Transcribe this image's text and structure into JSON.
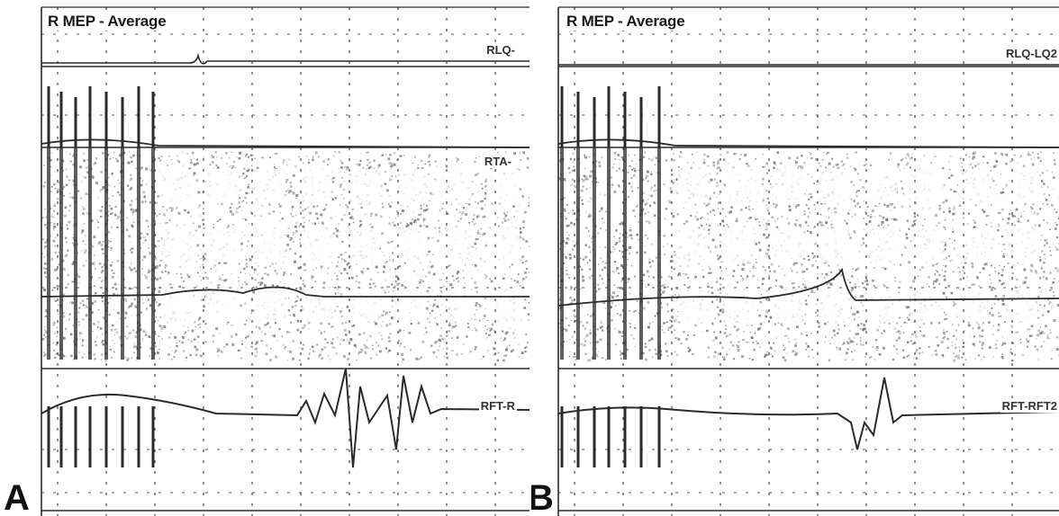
{
  "chart_data": [
    {
      "type": "line",
      "panel_label": "A",
      "title": "R MEP - Average",
      "grid": true,
      "channels": [
        {
          "label": "RLQ-",
          "features": "stimulus artifacts only; small deflection mid-trace; no muscle response"
        },
        {
          "label": "RTA-",
          "features": "stimulus artifacts; late spike cluster"
        },
        {
          "label": "",
          "features": "saturated / noisy trace"
        },
        {
          "label": "RFT-R",
          "features": "polyphasic motor evoked potential after stimulus train"
        }
      ]
    },
    {
      "type": "line",
      "panel_label": "B",
      "title": "R MEP - Average",
      "grid": true,
      "channels": [
        {
          "label": "RLQ-LQ2",
          "features": "flat trace; no response"
        },
        {
          "label": "",
          "features": "stimulus artifacts only"
        },
        {
          "label": "",
          "features": "saturated / noisy trace with small peak"
        },
        {
          "label": "RFT-RFT2",
          "features": "smaller single motor evoked potential"
        }
      ]
    }
  ],
  "colors": {
    "trace": "#2a2a2a",
    "grid": "#555555",
    "noise": "#6e6e6e",
    "background": "#ffffff"
  }
}
